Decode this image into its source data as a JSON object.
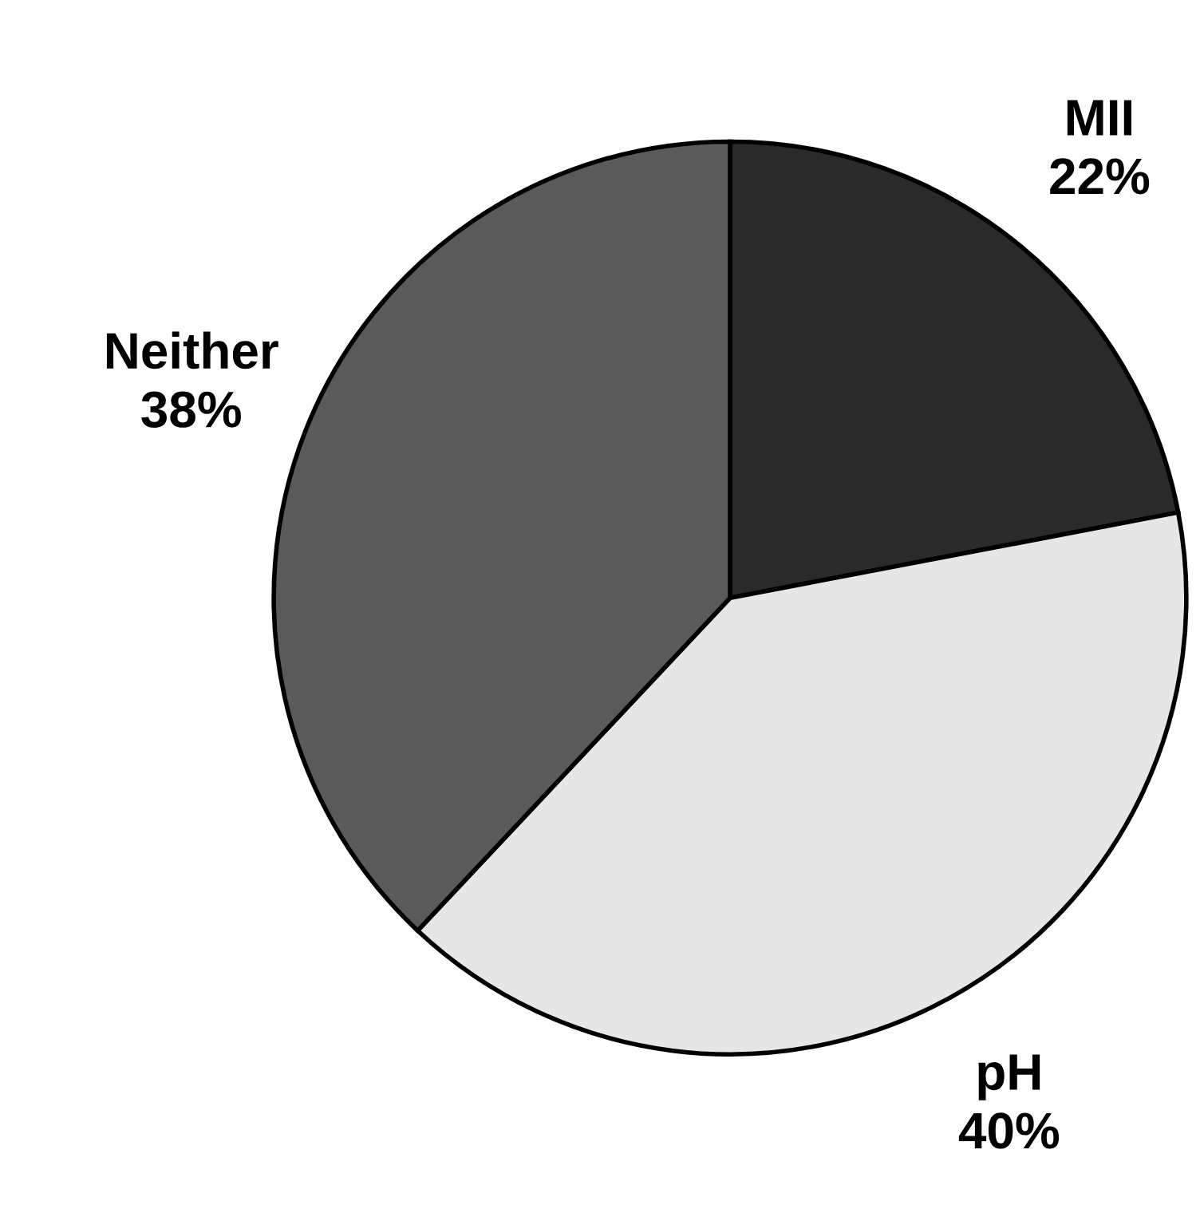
{
  "chart_data": {
    "type": "pie",
    "categories": [
      "MII",
      "pH",
      "Neither"
    ],
    "values": [
      22,
      40,
      38
    ],
    "value_labels": [
      "22%",
      "40%",
      "38%"
    ],
    "colors": [
      "#2a2a2a",
      "#e6e6e6",
      "#5a5a5a"
    ]
  }
}
